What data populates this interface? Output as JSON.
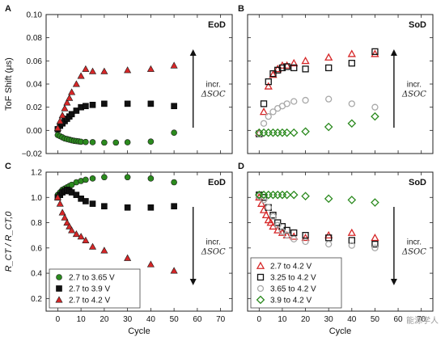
{
  "chart_data": [
    {
      "panel": "A",
      "type": "scatter",
      "title": "EoD",
      "ylabel": "ToF Shift (μs)",
      "xlim": [
        -5,
        75
      ],
      "ylim": [
        -0.02,
        0.1
      ],
      "yticks": [
        "−0.02",
        "0.00",
        "0.02",
        "0.04",
        "0.06",
        "0.08",
        "0.10"
      ],
      "annotation": {
        "line1": "incr.",
        "line2": "ΔSOC"
      },
      "arrow": "up",
      "series": [
        {
          "name": "2.7 to 3.65 V",
          "marker": "circle-filled",
          "color": "#2b8a1e",
          "x": [
            0,
            1,
            2,
            3,
            4,
            5,
            6,
            7,
            8,
            9,
            10,
            12,
            15,
            20,
            25,
            30,
            40,
            50
          ],
          "y": [
            -0.004,
            -0.005,
            -0.006,
            -0.007,
            -0.0075,
            -0.008,
            -0.0085,
            -0.009,
            -0.0092,
            -0.0095,
            -0.0098,
            -0.01,
            -0.0102,
            -0.0105,
            -0.0105,
            -0.0103,
            -0.0097,
            -0.002
          ]
        },
        {
          "name": "2.7 to 3.9 V",
          "marker": "square-filled",
          "color": "#111111",
          "x": [
            0,
            1,
            2,
            3,
            4,
            5,
            6,
            8,
            10,
            12,
            15,
            20,
            30,
            40,
            50
          ],
          "y": [
            0.001,
            0.004,
            0.006,
            0.008,
            0.01,
            0.012,
            0.014,
            0.017,
            0.02,
            0.021,
            0.022,
            0.023,
            0.023,
            0.023,
            0.021
          ]
        },
        {
          "name": "2.7 to 4.2 V",
          "marker": "triangle-filled",
          "color": "#d62728",
          "x": [
            0,
            1,
            2,
            3,
            4,
            5,
            6,
            8,
            10,
            12,
            15,
            20,
            30,
            40,
            50
          ],
          "y": [
            0.002,
            0.008,
            0.013,
            0.019,
            0.024,
            0.028,
            0.033,
            0.04,
            0.047,
            0.053,
            0.051,
            0.051,
            0.052,
            0.053,
            0.056
          ]
        }
      ]
    },
    {
      "panel": "B",
      "type": "scatter",
      "title": "SoD",
      "xlim": [
        -5,
        75
      ],
      "ylim": [
        -0.02,
        0.1
      ],
      "annotation": {
        "line1": "incr.",
        "line2": "ΔSOC"
      },
      "arrow": "up",
      "series": [
        {
          "name": "2.7 to 4.2 V",
          "marker": "triangle-open",
          "color": "#d62728",
          "x": [
            0,
            2,
            4,
            6,
            8,
            10,
            12,
            15,
            20,
            30,
            40,
            50
          ],
          "y": [
            -0.002,
            0.016,
            0.038,
            0.048,
            0.053,
            0.056,
            0.056,
            0.058,
            0.06,
            0.063,
            0.066,
            0.066
          ]
        },
        {
          "name": "3.25 to 4.2 V",
          "marker": "square-open",
          "color": "#111111",
          "x": [
            0,
            2,
            4,
            6,
            8,
            10,
            12,
            15,
            20,
            30,
            40,
            50
          ],
          "y": [
            -0.003,
            0.023,
            0.042,
            0.049,
            0.052,
            0.054,
            0.055,
            0.054,
            0.053,
            0.054,
            0.058,
            0.068
          ]
        },
        {
          "name": "3.65 to 4.2 V",
          "marker": "circle-open",
          "color": "#a8a8a8",
          "x": [
            0,
            2,
            4,
            6,
            8,
            10,
            12,
            15,
            20,
            30,
            40,
            50
          ],
          "y": [
            -0.003,
            0.006,
            0.012,
            0.016,
            0.019,
            0.021,
            0.023,
            0.025,
            0.026,
            0.027,
            0.023,
            0.02
          ]
        },
        {
          "name": "3.9 to 4.2 V",
          "marker": "diamond-open",
          "color": "#2b8a1e",
          "x": [
            0,
            2,
            4,
            6,
            8,
            10,
            12,
            15,
            20,
            30,
            40,
            50
          ],
          "y": [
            -0.002,
            -0.002,
            -0.002,
            -0.002,
            -0.002,
            -0.002,
            -0.002,
            -0.002,
            -0.001,
            0.003,
            0.006,
            0.012
          ]
        }
      ]
    },
    {
      "panel": "C",
      "type": "scatter",
      "title": "EoD",
      "ylabel": "R_CT / R_CT,0",
      "xlabel": "Cycle",
      "xlim": [
        -5,
        75
      ],
      "ylim": [
        0.1,
        1.2
      ],
      "xticks": [
        "0",
        "10",
        "20",
        "30",
        "40",
        "50",
        "60",
        "70"
      ],
      "yticks": [
        "0.2",
        "0.4",
        "0.6",
        "0.8",
        "1.0",
        "1.2"
      ],
      "annotation": {
        "line1": "incr.",
        "line2": "ΔSOC"
      },
      "arrow": "down",
      "legend": "lower-left",
      "series": [
        {
          "name": "2.7 to 3.65 V",
          "marker": "circle-filled",
          "color": "#2b8a1e",
          "x": [
            0,
            1,
            2,
            3,
            4,
            5,
            6,
            8,
            10,
            12,
            15,
            20,
            30,
            40,
            50
          ],
          "y": [
            1.02,
            1.04,
            1.06,
            1.07,
            1.08,
            1.09,
            1.1,
            1.12,
            1.13,
            1.14,
            1.15,
            1.16,
            1.16,
            1.15,
            1.12
          ]
        },
        {
          "name": "2.7 to 3.9 V",
          "marker": "square-filled",
          "color": "#111111",
          "x": [
            0,
            1,
            2,
            3,
            4,
            5,
            6,
            8,
            10,
            12,
            15,
            20,
            30,
            40,
            50
          ],
          "y": [
            1.0,
            1.02,
            1.04,
            1.05,
            1.06,
            1.05,
            1.04,
            1.02,
            0.99,
            0.97,
            0.95,
            0.93,
            0.92,
            0.92,
            0.93
          ]
        },
        {
          "name": "2.7 to 4.2 V",
          "marker": "triangle-filled",
          "color": "#d62728",
          "x": [
            0,
            1,
            2,
            3,
            4,
            5,
            6,
            8,
            10,
            12,
            15,
            20,
            30,
            40,
            50
          ],
          "y": [
            1.0,
            0.95,
            0.88,
            0.84,
            0.8,
            0.77,
            0.74,
            0.71,
            0.69,
            0.66,
            0.61,
            0.58,
            0.52,
            0.47,
            0.42
          ]
        }
      ]
    },
    {
      "panel": "D",
      "type": "scatter",
      "title": "SoD",
      "xlabel": "Cycle",
      "xlim": [
        -5,
        75
      ],
      "ylim": [
        0.1,
        1.2
      ],
      "xticks": [
        "0",
        "10",
        "20",
        "30",
        "40",
        "50",
        "60",
        "70"
      ],
      "annotation": {
        "line1": "incr.",
        "line2": "ΔSOC"
      },
      "arrow": "down",
      "legend": "lower-left",
      "series": [
        {
          "name": "2.7 to 4.2 V",
          "marker": "triangle-open",
          "color": "#d62728",
          "x": [
            0,
            1,
            2,
            3,
            4,
            5,
            6,
            8,
            10,
            12,
            15,
            20,
            30,
            40,
            50
          ],
          "y": [
            1.0,
            0.95,
            0.9,
            0.86,
            0.82,
            0.8,
            0.77,
            0.74,
            0.72,
            0.7,
            0.69,
            0.68,
            0.7,
            0.72,
            0.68
          ]
        },
        {
          "name": "3.25 to 4.2 V",
          "marker": "square-open",
          "color": "#111111",
          "x": [
            0,
            2,
            4,
            6,
            8,
            10,
            12,
            15,
            20,
            30,
            40,
            50
          ],
          "y": [
            1.02,
            1.0,
            0.92,
            0.86,
            0.8,
            0.77,
            0.74,
            0.72,
            0.7,
            0.68,
            0.66,
            0.63
          ]
        },
        {
          "name": "3.65 to 4.2 V",
          "marker": "circle-open",
          "color": "#a8a8a8",
          "x": [
            0,
            2,
            4,
            6,
            8,
            10,
            12,
            15,
            20,
            30,
            40,
            50
          ],
          "y": [
            1.01,
            0.98,
            0.92,
            0.85,
            0.78,
            0.73,
            0.7,
            0.67,
            0.65,
            0.63,
            0.62,
            0.6
          ]
        },
        {
          "name": "3.9 to 4.2 V",
          "marker": "diamond-open",
          "color": "#2b8a1e",
          "x": [
            0,
            2,
            4,
            6,
            8,
            10,
            12,
            15,
            20,
            30,
            40,
            50
          ],
          "y": [
            1.02,
            1.02,
            1.02,
            1.02,
            1.02,
            1.02,
            1.02,
            1.02,
            1.01,
            0.99,
            0.98,
            0.96
          ]
        }
      ]
    }
  ],
  "watermark": "能源学人"
}
